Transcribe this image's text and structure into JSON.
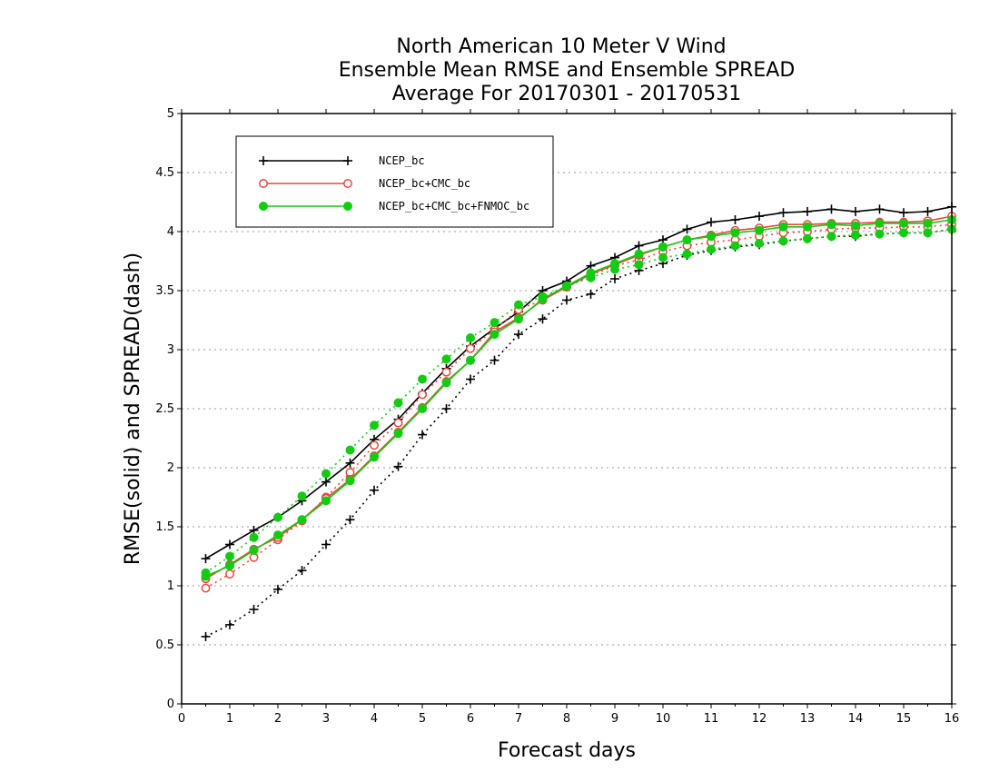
{
  "chart_data": {
    "type": "line",
    "title": [
      "North American 10 Meter V Wind",
      "Ensemble Mean RMSE and Ensemble SPREAD",
      "Average For 20170301 - 20170531"
    ],
    "xlabel": "Forecast days",
    "ylabel": "RMSE(solid) and SPREAD(dash)",
    "xlim": [
      0,
      16
    ],
    "ylim": [
      0,
      5
    ],
    "xticks": [
      0,
      1,
      2,
      3,
      4,
      5,
      6,
      7,
      8,
      9,
      10,
      11,
      12,
      13,
      14,
      15,
      16
    ],
    "yticks": [
      0,
      0.5,
      1,
      1.5,
      2,
      2.5,
      3,
      3.5,
      4,
      4.5,
      5
    ],
    "ytick_labels": [
      "0",
      "0.5",
      "1",
      "1.5",
      "2",
      "2.5",
      "3",
      "3.5",
      "4",
      "4.5",
      "5"
    ],
    "grid": "horizontal dotted",
    "legend_position": "top-left",
    "x": [
      0.5,
      1,
      1.5,
      2,
      2.5,
      3,
      3.5,
      4,
      4.5,
      5,
      5.5,
      6,
      6.5,
      7,
      7.5,
      8,
      8.5,
      9,
      9.5,
      10,
      10.5,
      11,
      11.5,
      12,
      12.5,
      13,
      13.5,
      14,
      14.5,
      15,
      15.5,
      16
    ],
    "series": [
      {
        "name": "NCEP_bc",
        "color": "#000000",
        "marker": "plus",
        "rmse": [
          1.23,
          1.35,
          1.47,
          1.58,
          1.72,
          1.88,
          2.04,
          2.24,
          2.41,
          2.63,
          2.84,
          3.03,
          3.18,
          3.32,
          3.5,
          3.58,
          3.71,
          3.78,
          3.88,
          3.93,
          4.02,
          4.08,
          4.1,
          4.13,
          4.16,
          4.17,
          4.19,
          4.17,
          4.19,
          4.16,
          4.17,
          4.21
        ],
        "spread": [
          0.57,
          0.67,
          0.8,
          0.97,
          1.13,
          1.35,
          1.56,
          1.81,
          2.01,
          2.28,
          2.5,
          2.75,
          2.91,
          3.13,
          3.26,
          3.42,
          3.47,
          3.6,
          3.67,
          3.73,
          3.8,
          3.84,
          3.87,
          3.89,
          3.92,
          3.94,
          3.96,
          3.96,
          3.98,
          3.99,
          3.99,
          4.02
        ]
      },
      {
        "name": "NCEP_bc+CMC_bc",
        "color": "#e8473c",
        "marker": "open-circle",
        "rmse": [
          1.06,
          1.18,
          1.31,
          1.41,
          1.56,
          1.74,
          1.9,
          2.1,
          2.3,
          2.51,
          2.73,
          2.91,
          3.15,
          3.27,
          3.42,
          3.53,
          3.64,
          3.72,
          3.8,
          3.87,
          3.93,
          3.97,
          4.01,
          4.03,
          4.06,
          4.06,
          4.07,
          4.07,
          4.08,
          4.08,
          4.09,
          4.13
        ],
        "spread": [
          0.98,
          1.1,
          1.24,
          1.39,
          1.55,
          1.75,
          1.96,
          2.19,
          2.38,
          2.62,
          2.81,
          3.01,
          3.17,
          3.34,
          3.42,
          3.53,
          3.63,
          3.71,
          3.76,
          3.83,
          3.88,
          3.91,
          3.93,
          3.96,
          3.99,
          4.0,
          4.02,
          4.03,
          4.03,
          4.04,
          4.04,
          4.06
        ]
      },
      {
        "name": "NCEP_bc+CMC_bc+FNMOC_bc",
        "color": "#12cc12",
        "marker": "filled-circle",
        "rmse": [
          1.08,
          1.17,
          1.3,
          1.43,
          1.56,
          1.72,
          1.89,
          2.09,
          2.29,
          2.5,
          2.72,
          2.91,
          3.13,
          3.26,
          3.43,
          3.54,
          3.65,
          3.73,
          3.81,
          3.87,
          3.93,
          3.96,
          3.99,
          4.01,
          4.04,
          4.04,
          4.06,
          4.05,
          4.07,
          4.07,
          4.07,
          4.1
        ],
        "spread": [
          1.11,
          1.25,
          1.41,
          1.58,
          1.76,
          1.95,
          2.15,
          2.36,
          2.55,
          2.75,
          2.92,
          3.1,
          3.23,
          3.38,
          3.45,
          3.54,
          3.61,
          3.68,
          3.72,
          3.78,
          3.81,
          3.85,
          3.88,
          3.9,
          3.92,
          3.94,
          3.96,
          3.97,
          3.98,
          3.99,
          3.99,
          4.02
        ]
      }
    ]
  }
}
